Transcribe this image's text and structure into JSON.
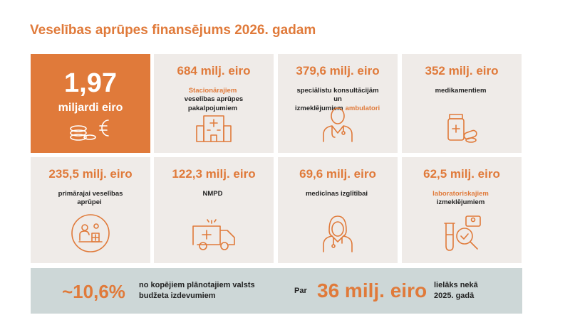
{
  "header": {
    "title": "Veselības aprūpes finansējums 2026. gadam"
  },
  "tiles": [
    {
      "amount": "1,97",
      "unit": "miljardi eiro",
      "featured": true
    },
    {
      "amount": "684 milj. eiro",
      "description": [
        {
          "text": "Stacionārajiem",
          "highlight": true
        },
        {
          "text": "veselības aprūpes pakalpojumiem"
        }
      ]
    },
    {
      "amount": "379,6 milj. eiro",
      "description": [
        {
          "text": "speciālistu konsultācijām un izmeklējumiem"
        },
        {
          "text": "ambulatori",
          "highlight": true
        }
      ]
    },
    {
      "amount": "352 milj. eiro",
      "description": [
        {
          "text": "medikamentiem"
        }
      ]
    },
    {
      "amount": "235,5 milj. eiro",
      "description": [
        {
          "text": "primārajai veselības aprūpei"
        }
      ]
    },
    {
      "amount": "122,3 milj. eiro",
      "description": [
        {
          "text": "NMPD"
        }
      ]
    },
    {
      "amount": "69,6 milj. eiro",
      "description": [
        {
          "text": "medicīnas izglītībai"
        }
      ]
    },
    {
      "amount": "62,5 milj. eiro",
      "description": [
        {
          "text": "laboratoriskajiem",
          "highlight": true
        },
        {
          "text": "izmeklējumiem"
        }
      ]
    }
  ],
  "footer": {
    "share": "~10,6%",
    "share_text": "no kopējiem plānotajiem valsts budžeta izdevumiem",
    "prefix": "Par",
    "increase": "36 milj. eiro",
    "increase_text": "lielāks nekā 2025. gadā"
  }
}
